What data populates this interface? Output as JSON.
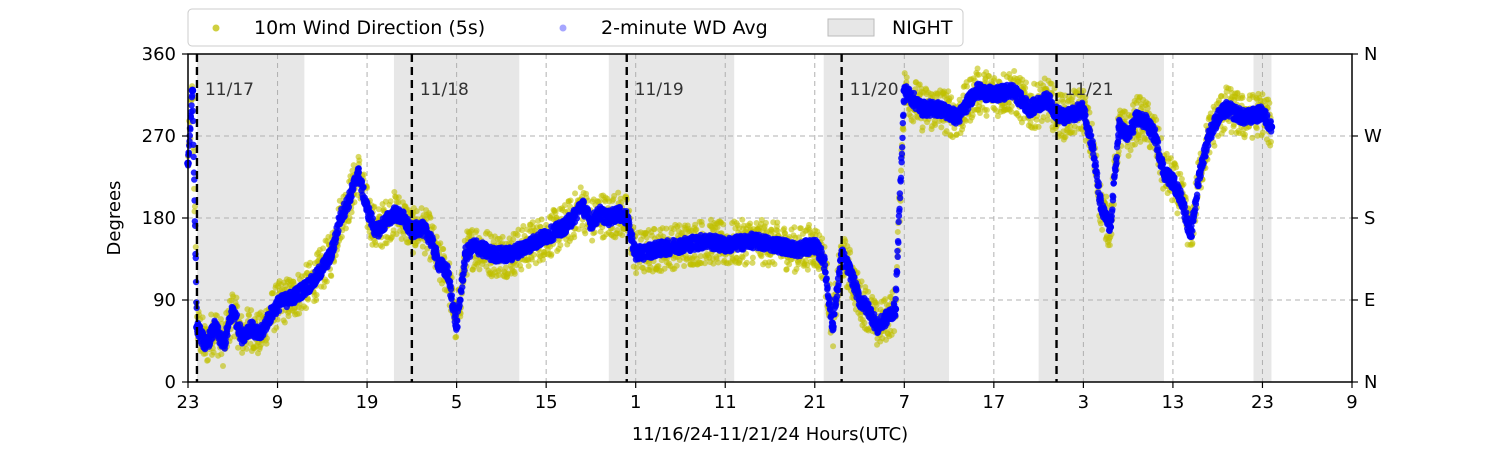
{
  "chart_data": {
    "type": "scatter",
    "xlabel": "11/16/24-11/21/24  Hours(UTC)",
    "ylabel": "Degrees",
    "x_range_hours": [
      0,
      130
    ],
    "ylim": [
      0,
      360
    ],
    "x_ticks": [
      {
        "hour": 0,
        "label": "23"
      },
      {
        "hour": 10,
        "label": "9"
      },
      {
        "hour": 20,
        "label": "19"
      },
      {
        "hour": 30,
        "label": "5"
      },
      {
        "hour": 40,
        "label": "15"
      },
      {
        "hour": 50,
        "label": "1"
      },
      {
        "hour": 60,
        "label": "11"
      },
      {
        "hour": 70,
        "label": "21"
      },
      {
        "hour": 80,
        "label": "7"
      },
      {
        "hour": 90,
        "label": "17"
      },
      {
        "hour": 100,
        "label": "3"
      },
      {
        "hour": 110,
        "label": "13"
      },
      {
        "hour": 120,
        "label": "23"
      },
      {
        "hour": 130,
        "label": "9"
      }
    ],
    "y_ticks": [
      {
        "value": 0,
        "label": "0"
      },
      {
        "value": 90,
        "label": "90"
      },
      {
        "value": 180,
        "label": "180"
      },
      {
        "value": 270,
        "label": "270"
      },
      {
        "value": 360,
        "label": "360"
      }
    ],
    "y_ticks_right": [
      {
        "value": 0,
        "label": "N"
      },
      {
        "value": 90,
        "label": "E"
      },
      {
        "value": 180,
        "label": "S"
      },
      {
        "value": 270,
        "label": "W"
      },
      {
        "value": 360,
        "label": "N"
      }
    ],
    "grid": "dashed",
    "legend_position": "top-left, above plot",
    "legend": [
      {
        "label": "10m Wind Direction (5s)",
        "kind": "marker",
        "color": "#bfbf00"
      },
      {
        "label": "2-minute WD Avg",
        "kind": "marker",
        "color": "#0000ff"
      },
      {
        "label": "NIGHT",
        "kind": "patch",
        "color": "#d3d3d3"
      }
    ],
    "night_spans_hours": [
      [
        1,
        13
      ],
      [
        23,
        37
      ],
      [
        47,
        61
      ],
      [
        71,
        85
      ],
      [
        95,
        109
      ],
      [
        119,
        121
      ]
    ],
    "day_markers": [
      {
        "hour": 1,
        "label": "11/17"
      },
      {
        "hour": 25,
        "label": "11/18"
      },
      {
        "hour": 49,
        "label": "11/19"
      },
      {
        "hour": 73,
        "label": "11/20"
      },
      {
        "hour": 97,
        "label": "11/21"
      }
    ],
    "series": [
      {
        "name": "10m Wind Direction (5s)",
        "color": "#bfbf00",
        "spread_deg": 25,
        "x": [
          0,
          0.5,
          1,
          2,
          3,
          4,
          5,
          6,
          7,
          8,
          9,
          10,
          12,
          14,
          16,
          17,
          18,
          19,
          20,
          21,
          22,
          23,
          24,
          25,
          26,
          27,
          28,
          29,
          30,
          31,
          32,
          34,
          36,
          38,
          40,
          42,
          43,
          44,
          45,
          46,
          47,
          48,
          49,
          50,
          52,
          55,
          58,
          60,
          63,
          66,
          68,
          70,
          71,
          72,
          73,
          74,
          75,
          76,
          77,
          78,
          79,
          80,
          81,
          82,
          84,
          86,
          88,
          90,
          92,
          94,
          96,
          97,
          98,
          100,
          101,
          102,
          103,
          104,
          105,
          106,
          107,
          108,
          109,
          110,
          111,
          112,
          113,
          114,
          115,
          116,
          118,
          120,
          121
        ],
        "y": [
          240,
          320,
          60,
          40,
          60,
          40,
          80,
          50,
          60,
          50,
          70,
          85,
          95,
          110,
          140,
          180,
          200,
          230,
          190,
          165,
          175,
          185,
          180,
          165,
          170,
          160,
          130,
          120,
          60,
          140,
          150,
          140,
          140,
          150,
          160,
          170,
          180,
          195,
          175,
          185,
          180,
          185,
          180,
          140,
          145,
          150,
          155,
          150,
          155,
          150,
          145,
          150,
          135,
          60,
          140,
          120,
          90,
          80,
          60,
          70,
          80,
          320,
          310,
          300,
          300,
          290,
          320,
          315,
          320,
          300,
          310,
          295,
          290,
          300,
          260,
          190,
          170,
          280,
          270,
          290,
          285,
          270,
          230,
          220,
          200,
          160,
          230,
          270,
          290,
          300,
          290,
          295,
          280
        ]
      },
      {
        "name": "2-minute WD Avg",
        "color": "#0000ff",
        "x": [
          0,
          0.5,
          1,
          2,
          3,
          4,
          5,
          6,
          7,
          8,
          9,
          10,
          12,
          14,
          16,
          17,
          18,
          19,
          20,
          21,
          22,
          23,
          24,
          25,
          26,
          27,
          28,
          29,
          30,
          31,
          32,
          34,
          36,
          38,
          40,
          42,
          43,
          44,
          45,
          46,
          47,
          48,
          49,
          50,
          52,
          55,
          58,
          60,
          63,
          66,
          68,
          70,
          71,
          72,
          73,
          74,
          75,
          76,
          77,
          78,
          79,
          80,
          81,
          82,
          84,
          86,
          88,
          90,
          92,
          94,
          96,
          97,
          98,
          100,
          101,
          102,
          103,
          104,
          105,
          106,
          107,
          108,
          109,
          110,
          111,
          112,
          113,
          114,
          115,
          116,
          118,
          120,
          121
        ],
        "y": [
          240,
          320,
          60,
          40,
          60,
          40,
          80,
          50,
          60,
          50,
          70,
          85,
          95,
          110,
          140,
          180,
          200,
          230,
          190,
          165,
          175,
          185,
          180,
          165,
          170,
          160,
          130,
          120,
          60,
          140,
          150,
          140,
          140,
          150,
          160,
          170,
          180,
          195,
          175,
          185,
          180,
          185,
          180,
          140,
          145,
          150,
          155,
          150,
          155,
          150,
          145,
          150,
          135,
          60,
          140,
          120,
          90,
          80,
          60,
          70,
          80,
          320,
          310,
          300,
          300,
          290,
          320,
          315,
          320,
          300,
          310,
          295,
          290,
          300,
          260,
          190,
          170,
          280,
          270,
          290,
          285,
          270,
          230,
          220,
          200,
          160,
          230,
          270,
          290,
          300,
          290,
          295,
          280
        ]
      }
    ]
  }
}
